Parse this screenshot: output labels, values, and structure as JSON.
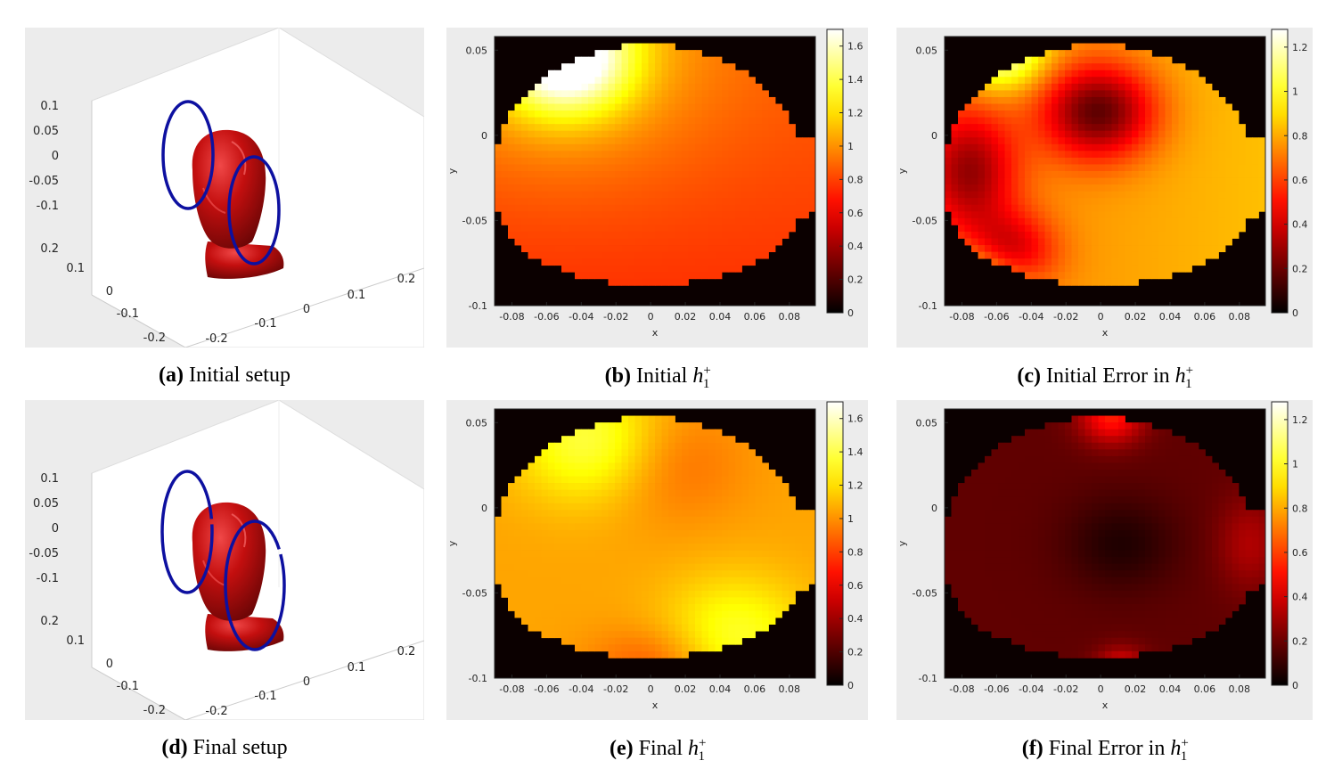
{
  "figure": {
    "panels": [
      {
        "id": "a",
        "label": "(a)",
        "text": "Initial setup"
      },
      {
        "id": "b",
        "label": "(b)",
        "text": "Initial",
        "math": {
          "base": "h",
          "sub": "1",
          "sup": "+"
        }
      },
      {
        "id": "c",
        "label": "(c)",
        "text": "Initial Error in",
        "math": {
          "base": "h",
          "sub": "1",
          "sup": "+"
        }
      },
      {
        "id": "d",
        "label": "(d)",
        "text": "Final setup"
      },
      {
        "id": "e",
        "label": "(e)",
        "text": "Final",
        "math": {
          "base": "h",
          "sub": "1",
          "sup": "+"
        }
      },
      {
        "id": "f",
        "label": "(f)",
        "text": "Final Error in",
        "math": {
          "base": "h",
          "sub": "1",
          "sup": "+"
        }
      }
    ],
    "setup3d": {
      "z_ticks": [
        "0.1",
        "0.05",
        "0",
        "-0.05",
        "-0.1"
      ],
      "y_ticks": [
        "0.2",
        "0.1",
        "0",
        "-0.1",
        "-0.2"
      ],
      "x_ticks": [
        "-0.2",
        "-0.1",
        "0",
        "0.1",
        "0.2"
      ],
      "head_color": "#c40f0f",
      "coil_color": "#0d10a0"
    },
    "heatmap_axes": {
      "xlabel": "x",
      "ylabel": "y",
      "x_ticks": [
        "-0.08",
        "-0.06",
        "-0.04",
        "-0.02",
        "0",
        "0.02",
        "0.04",
        "0.06",
        "0.08"
      ],
      "y_ticks": [
        "0.05",
        "0",
        "-0.05",
        "-0.1"
      ],
      "x_range": [
        -0.09,
        0.095
      ],
      "y_range": [
        -0.1,
        0.058
      ],
      "colormap": "hot"
    },
    "colorbars": {
      "h1": [
        "1.6",
        "1.4",
        "1.2",
        "1",
        "0.8",
        "0.6",
        "0.4",
        "0.2",
        "0"
      ],
      "h1_max": 1.7,
      "err": [
        "1.2",
        "1",
        "0.8",
        "0.6",
        "0.4",
        "0.2",
        "0"
      ],
      "err_max": 1.28
    }
  }
}
